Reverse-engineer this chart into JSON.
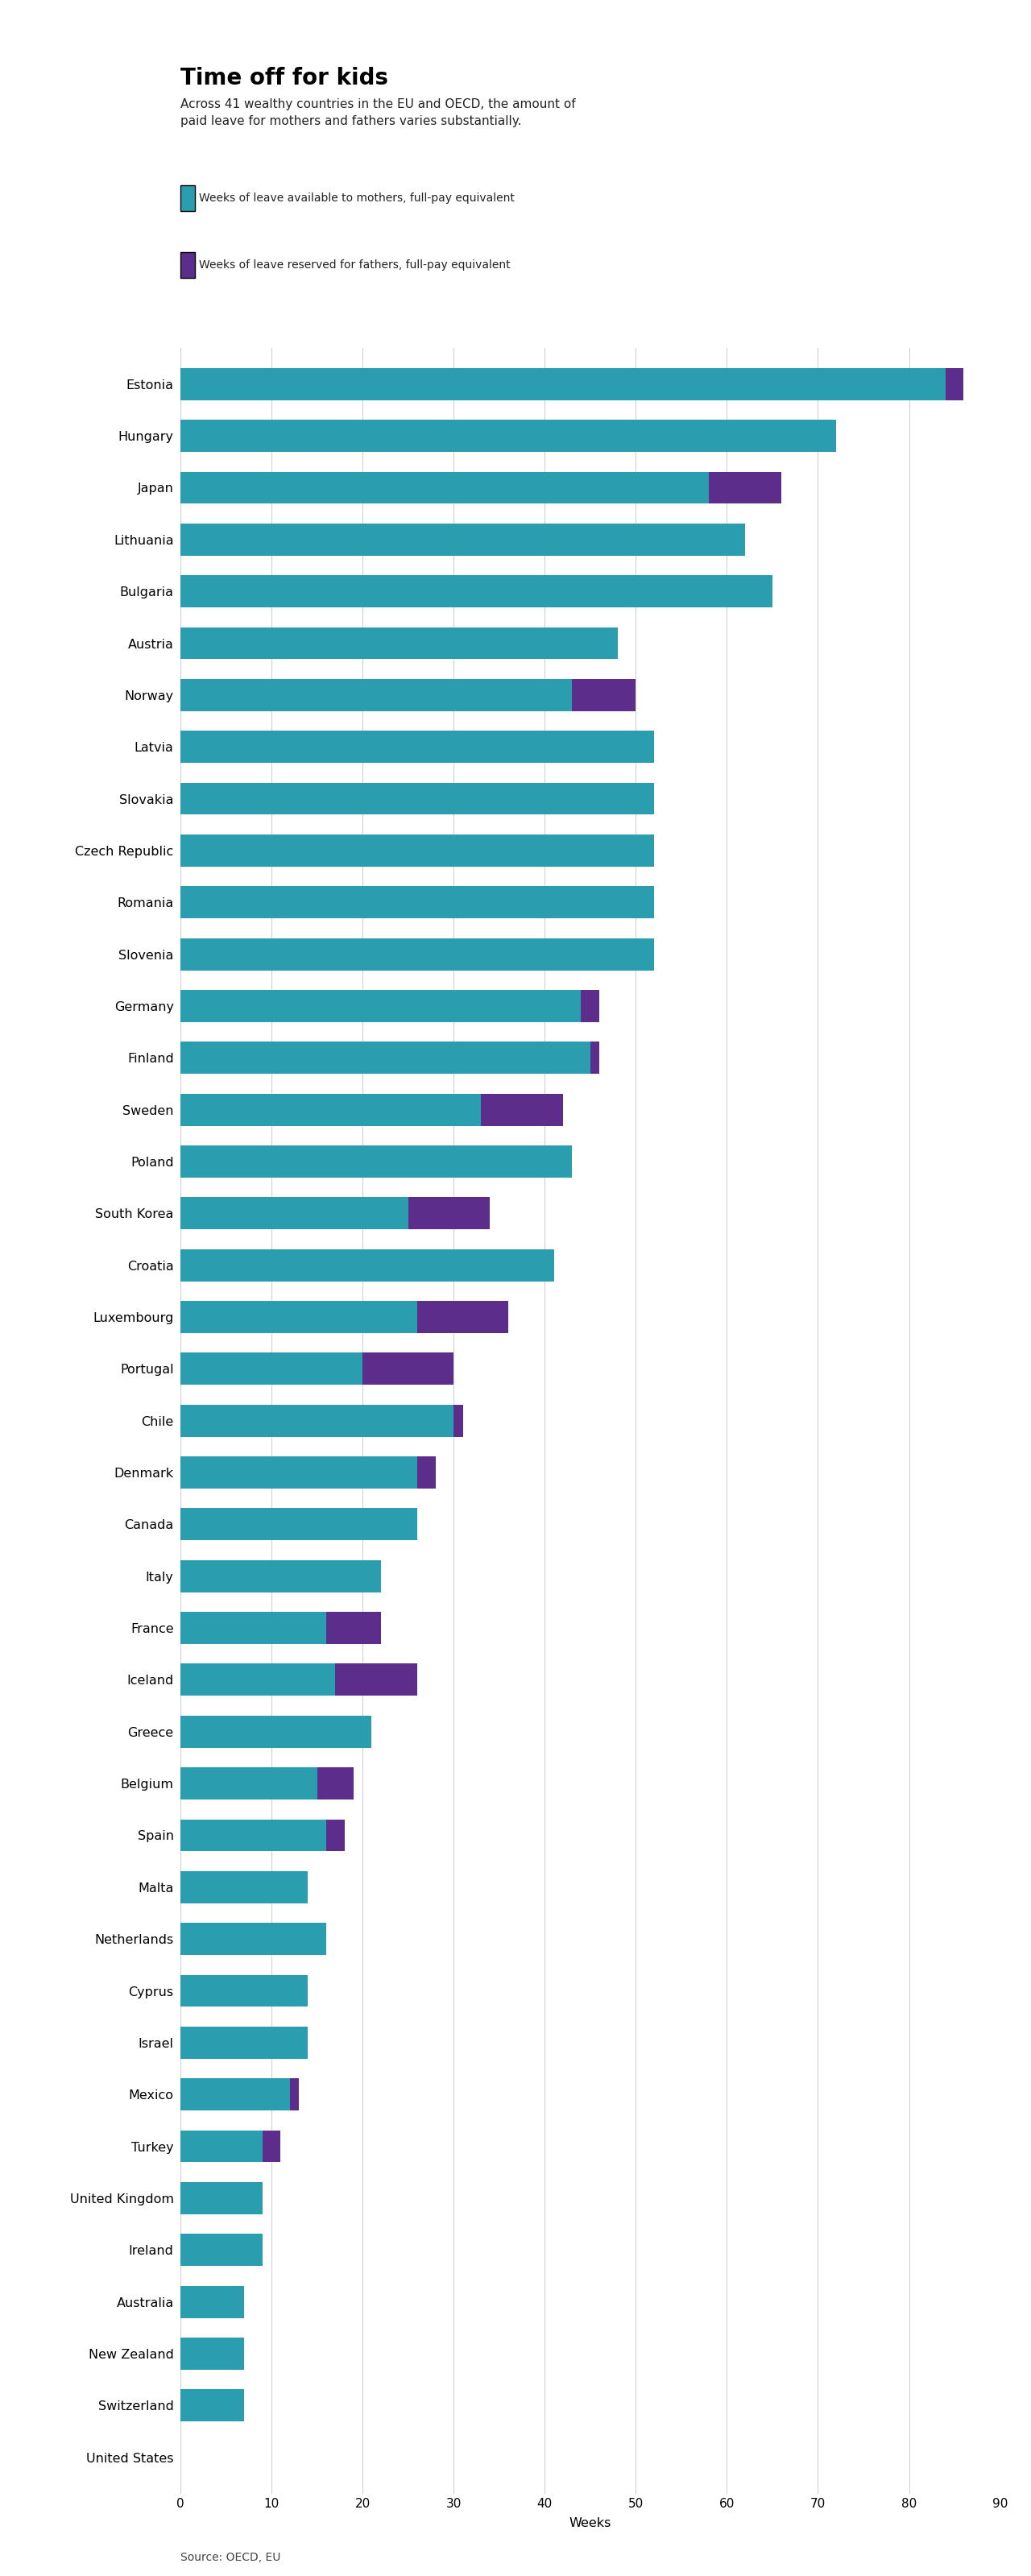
{
  "title": "Time off for kids",
  "subtitle": "Across 41 wealthy countries in the EU and OECD, the amount of\npaid leave for mothers and fathers varies substantially.",
  "legend1": "Weeks of leave available to mothers, full-pay equivalent",
  "legend2": "Weeks of leave reserved for fathers, full-pay equivalent",
  "source": "Source: OECD, EU",
  "xlabel": "Weeks",
  "mother_color": "#2a9daf",
  "father_color": "#5c2d8a",
  "background_color": "#ffffff",
  "xlim": [
    0,
    90
  ],
  "xticks": [
    0,
    10,
    20,
    30,
    40,
    50,
    60,
    70,
    80,
    90
  ],
  "countries": [
    "Estonia",
    "Hungary",
    "Japan",
    "Lithuania",
    "Bulgaria",
    "Austria",
    "Norway",
    "Latvia",
    "Slovakia",
    "Czech Republic",
    "Romania",
    "Slovenia",
    "Germany",
    "Finland",
    "Sweden",
    "Poland",
    "South Korea",
    "Croatia",
    "Luxembourg",
    "Portugal",
    "Chile",
    "Denmark",
    "Canada",
    "Italy",
    "France",
    "Iceland",
    "Greece",
    "Belgium",
    "Spain",
    "Malta",
    "Netherlands",
    "Cyprus",
    "Israel",
    "Mexico",
    "Turkey",
    "United Kingdom",
    "Ireland",
    "Australia",
    "New Zealand",
    "Switzerland",
    "United States"
  ],
  "mothers": [
    84,
    72,
    58,
    62,
    65,
    48,
    43,
    52,
    52,
    52,
    52,
    52,
    44,
    45,
    33,
    43,
    25,
    41,
    26,
    20,
    30,
    26,
    26,
    22,
    16,
    17,
    21,
    15,
    16,
    14,
    16,
    14,
    14,
    12,
    9,
    9,
    9,
    7,
    7,
    7,
    0
  ],
  "fathers": [
    2,
    0,
    8,
    0,
    0,
    0,
    7,
    0,
    0,
    0,
    0,
    0,
    2,
    1,
    9,
    0,
    9,
    0,
    10,
    10,
    1,
    2,
    0,
    0,
    6,
    9,
    0,
    4,
    2,
    0,
    0,
    0,
    0,
    1,
    2,
    0,
    0,
    0,
    0,
    0,
    0
  ]
}
